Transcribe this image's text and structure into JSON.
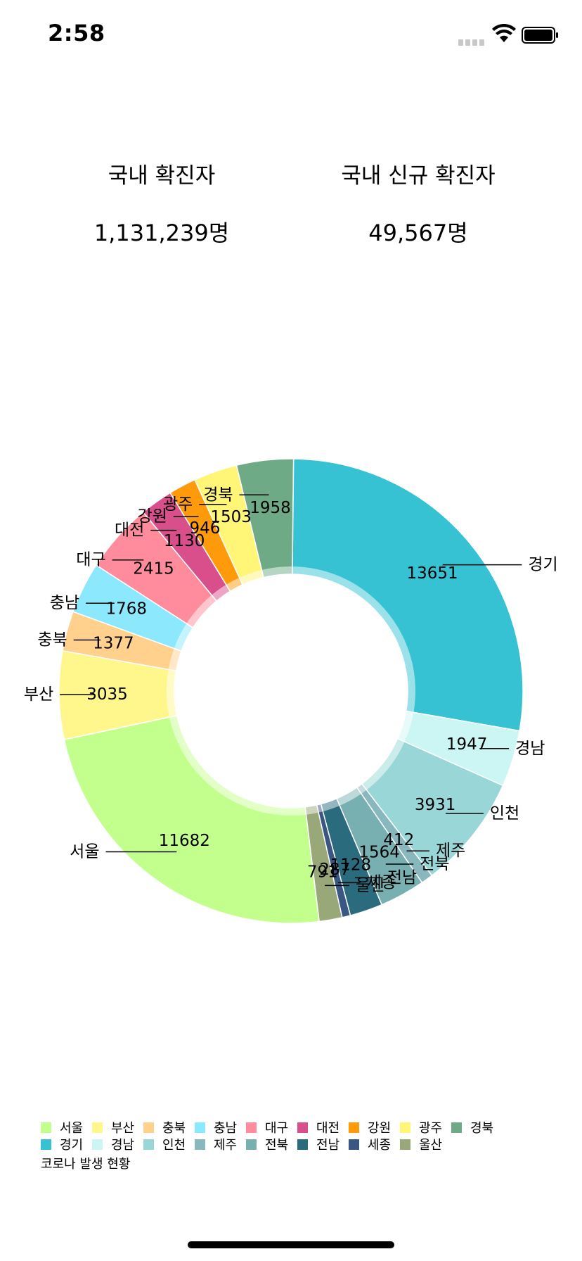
{
  "status_bar": {
    "time": "2:58"
  },
  "stats": {
    "total_label": "국내 확진자",
    "total_value": "1,131,239명",
    "new_label": "국내 신규 확진자",
    "new_value": "49,567명"
  },
  "chart_data": {
    "type": "pie",
    "title": "코로나 발생 현황",
    "donut": true,
    "value_labels": true,
    "legend_position": "bottom-left",
    "slices": [
      {
        "label": "서울",
        "value": 11682,
        "color": "#c3ff8c"
      },
      {
        "label": "부산",
        "value": 3035,
        "color": "#fff78c"
      },
      {
        "label": "충북",
        "value": 1377,
        "color": "#ffd18c"
      },
      {
        "label": "충남",
        "value": 1768,
        "color": "#8ce8fc"
      },
      {
        "label": "대구",
        "value": 2415,
        "color": "#ff8c9c"
      },
      {
        "label": "대전",
        "value": 1130,
        "color": "#d94f8c"
      },
      {
        "label": "강원",
        "value": 946,
        "color": "#ff9a0a"
      },
      {
        "label": "광주",
        "value": 1503,
        "color": "#fff576"
      },
      {
        "label": "경북",
        "value": 1958,
        "color": "#6daa85"
      },
      {
        "label": "경기",
        "value": 13651,
        "color": "#36c2d3"
      },
      {
        "label": "경남",
        "value": 1947,
        "color": "#ccf6f4"
      },
      {
        "label": "인천",
        "value": 3931,
        "color": "#98d6d7"
      },
      {
        "label": "제주",
        "value": 412,
        "color": "#89b7be"
      },
      {
        "label": "전북",
        "value": 1564,
        "color": "#78b0b1"
      },
      {
        "label": "전남",
        "value": 1128,
        "color": "#2a6b7e"
      },
      {
        "label": "세종",
        "value": 287,
        "color": "#3a5683"
      },
      {
        "label": "울산",
        "value": 791,
        "color": "#98a878"
      }
    ]
  }
}
